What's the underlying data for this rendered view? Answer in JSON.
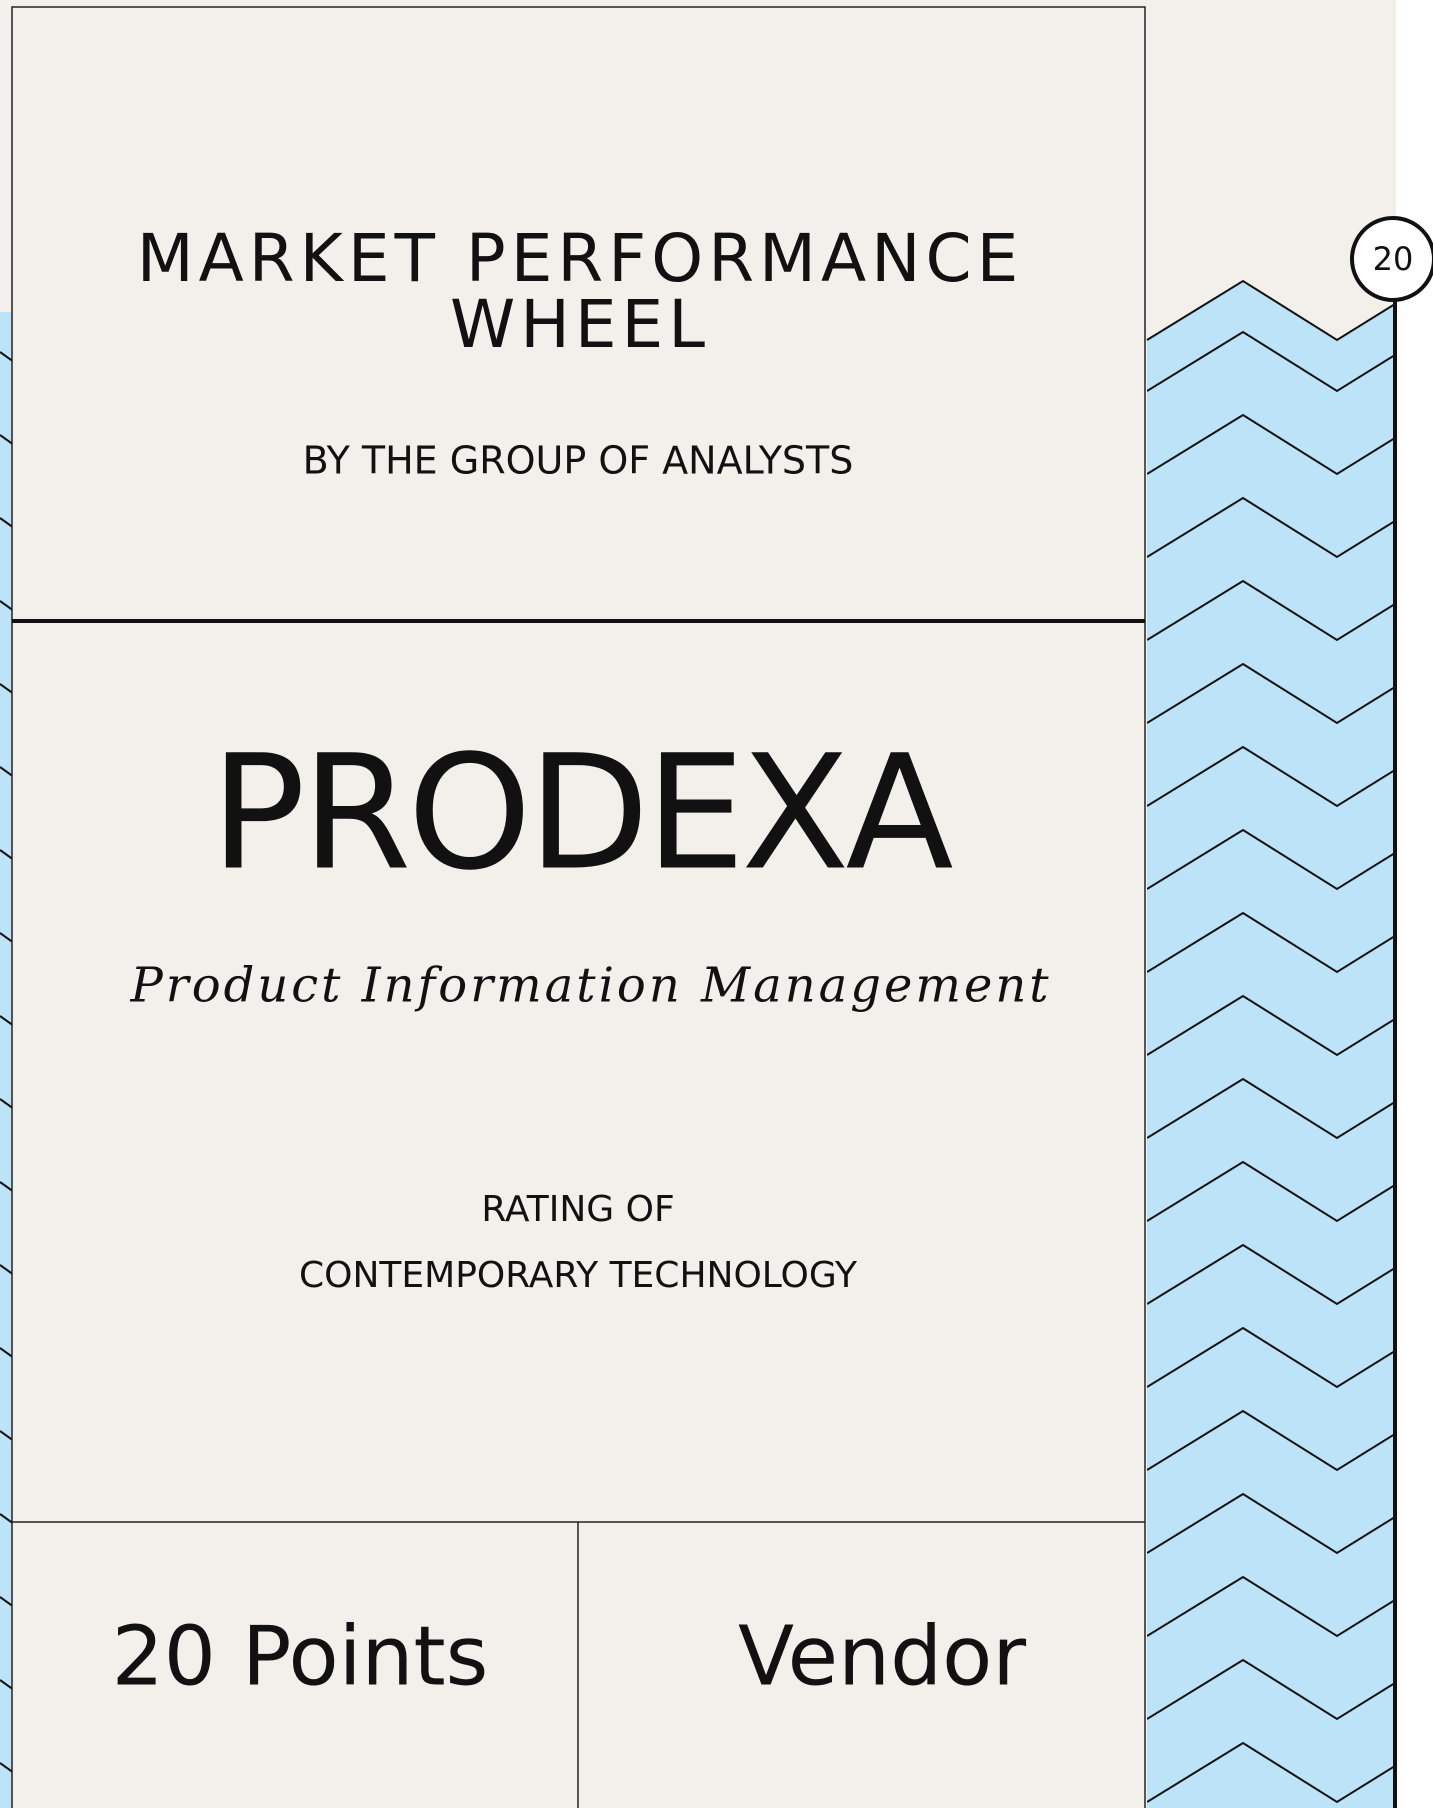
{
  "header": {
    "title": [
      "MARKET PERFORMANCE",
      "WHEEL"
    ],
    "subtitle": "BY THE GROUP OF ANALYSTS"
  },
  "badge": "20",
  "product": {
    "name": "PRODEXA",
    "category": "Product Information Management",
    "rating": [
      "RATING OF",
      "CONTEMPORARY TECHNOLOGY"
    ]
  },
  "footer": {
    "points": "20 Points",
    "role": "Vendor"
  }
}
